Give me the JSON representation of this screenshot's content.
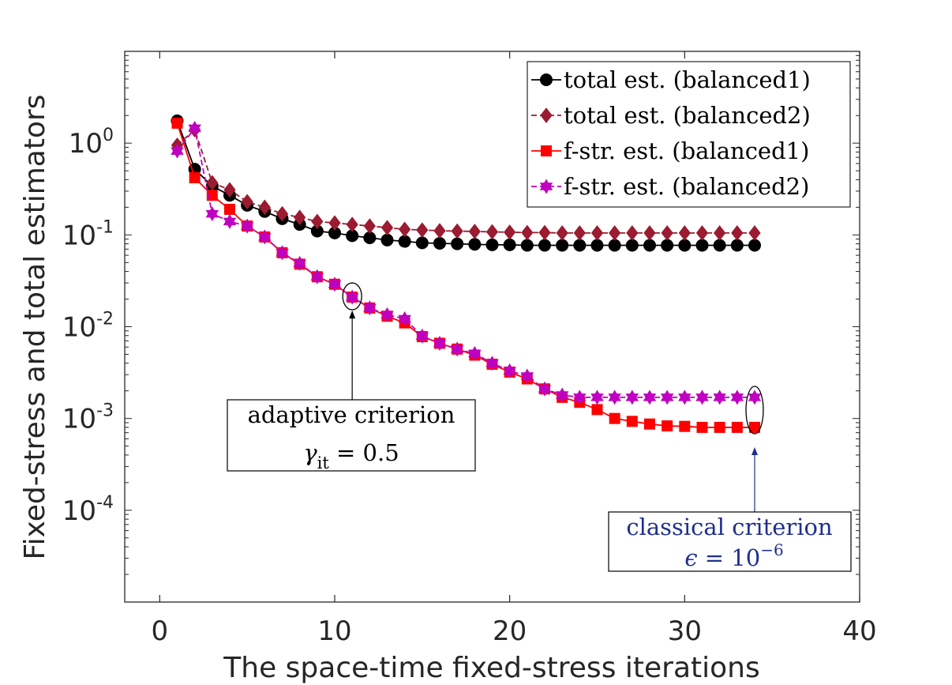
{
  "chart_data": {
    "type": "line",
    "yscale": "log",
    "xlabel": "The space-time fixed-stress iterations",
    "ylabel": "Fixed-stress and total estimators",
    "xlim": [
      -2,
      40
    ],
    "ylim": [
      1e-05,
      10
    ],
    "xticks": [
      0,
      10,
      20,
      30,
      40
    ],
    "xtick_labels": [
      "0",
      "10",
      "20",
      "30",
      "40"
    ],
    "yticks": [
      {
        "value": 1,
        "base": "10",
        "exp": "0"
      },
      {
        "value": 0.1,
        "base": "10",
        "exp": "-1"
      },
      {
        "value": 0.01,
        "base": "10",
        "exp": "-2"
      },
      {
        "value": 0.001,
        "base": "10",
        "exp": "-3"
      },
      {
        "value": 0.0001,
        "base": "10",
        "exp": "-4"
      }
    ],
    "legend_position": "top-right",
    "series": [
      {
        "name": "total est.  (balanced1)",
        "color": "#000000",
        "marker": "circle",
        "dash": "solid",
        "x": [
          1,
          2,
          3,
          4,
          5,
          6,
          7,
          8,
          9,
          10,
          11,
          12,
          13,
          14,
          15,
          16,
          17,
          18,
          19,
          20,
          21,
          22,
          23,
          24,
          25,
          26,
          27,
          28,
          29,
          30,
          31,
          32,
          33,
          34
        ],
        "y": [
          1.75,
          0.52,
          0.34,
          0.27,
          0.21,
          0.18,
          0.15,
          0.13,
          0.11,
          0.105,
          0.098,
          0.093,
          0.088,
          0.085,
          0.082,
          0.081,
          0.08,
          0.079,
          0.078,
          0.078,
          0.077,
          0.077,
          0.077,
          0.077,
          0.077,
          0.077,
          0.077,
          0.077,
          0.077,
          0.077,
          0.077,
          0.077,
          0.077,
          0.077
        ]
      },
      {
        "name": "total est.  (balanced2)",
        "color": "#9b1b30",
        "marker": "diamond",
        "dash": "dashed",
        "x": [
          1,
          2,
          3,
          4,
          5,
          6,
          7,
          8,
          9,
          10,
          11,
          12,
          13,
          14,
          15,
          16,
          17,
          18,
          19,
          20,
          21,
          22,
          23,
          24,
          25,
          26,
          27,
          28,
          29,
          30,
          31,
          32,
          33,
          34
        ],
        "y": [
          0.95,
          1.4,
          0.37,
          0.31,
          0.23,
          0.2,
          0.17,
          0.155,
          0.14,
          0.135,
          0.13,
          0.125,
          0.12,
          0.115,
          0.113,
          0.111,
          0.11,
          0.109,
          0.108,
          0.107,
          0.106,
          0.106,
          0.105,
          0.105,
          0.105,
          0.105,
          0.105,
          0.105,
          0.105,
          0.105,
          0.105,
          0.105,
          0.105,
          0.105
        ]
      },
      {
        "name": "f-str. est. (balanced1)",
        "color": "#ff0000",
        "marker": "square",
        "dash": "solid",
        "x": [
          1,
          2,
          3,
          4,
          5,
          6,
          7,
          8,
          9,
          10,
          11,
          12,
          13,
          14,
          15,
          16,
          17,
          18,
          19,
          20,
          21,
          22,
          23,
          24,
          25,
          26,
          27,
          28,
          29,
          30,
          31,
          32,
          33,
          34
        ],
        "y": [
          1.65,
          0.42,
          0.27,
          0.19,
          0.125,
          0.095,
          0.064,
          0.048,
          0.035,
          0.029,
          0.021,
          0.016,
          0.013,
          0.011,
          0.0078,
          0.0066,
          0.0057,
          0.0049,
          0.0039,
          0.0032,
          0.0027,
          0.0021,
          0.0017,
          0.0015,
          0.00125,
          0.001,
          0.00093,
          0.00087,
          0.00083,
          0.00082,
          0.0008,
          0.0008,
          0.0008,
          0.0008
        ]
      },
      {
        "name": "f-str. est. (balanced2)",
        "color": "#c000c0",
        "marker": "hexagram",
        "dash": "dashed",
        "x": [
          1,
          2,
          3,
          4,
          5,
          6,
          7,
          8,
          9,
          10,
          11,
          12,
          13,
          14,
          15,
          16,
          17,
          18,
          19,
          20,
          21,
          22,
          23,
          24,
          25,
          26,
          27,
          28,
          29,
          30,
          31,
          32,
          33,
          34
        ],
        "y": [
          0.82,
          1.45,
          0.17,
          0.14,
          0.125,
          0.095,
          0.064,
          0.049,
          0.035,
          0.029,
          0.021,
          0.016,
          0.0135,
          0.0122,
          0.0079,
          0.0066,
          0.0057,
          0.0051,
          0.004,
          0.0033,
          0.0029,
          0.0021,
          0.0018,
          0.0017,
          0.0017,
          0.0017,
          0.0017,
          0.0017,
          0.0017,
          0.0017,
          0.0017,
          0.0017,
          0.0017,
          0.0017
        ]
      }
    ],
    "annotations": [
      {
        "id": "adaptive",
        "line1": "adaptive criterion",
        "line2_symbol": "γ",
        "line2_sub": "it",
        "line2_rest": " = 0.5",
        "color": "#000000",
        "target_x": 11,
        "target_y": 0.021
      },
      {
        "id": "classical",
        "line1": "classical criterion",
        "line2_symbol": "ϵ",
        "line2_rest": " = 10",
        "line2_sup": "−6",
        "color": "#1f2f8f",
        "target_x": 34,
        "target_y": 0.0012
      }
    ]
  }
}
